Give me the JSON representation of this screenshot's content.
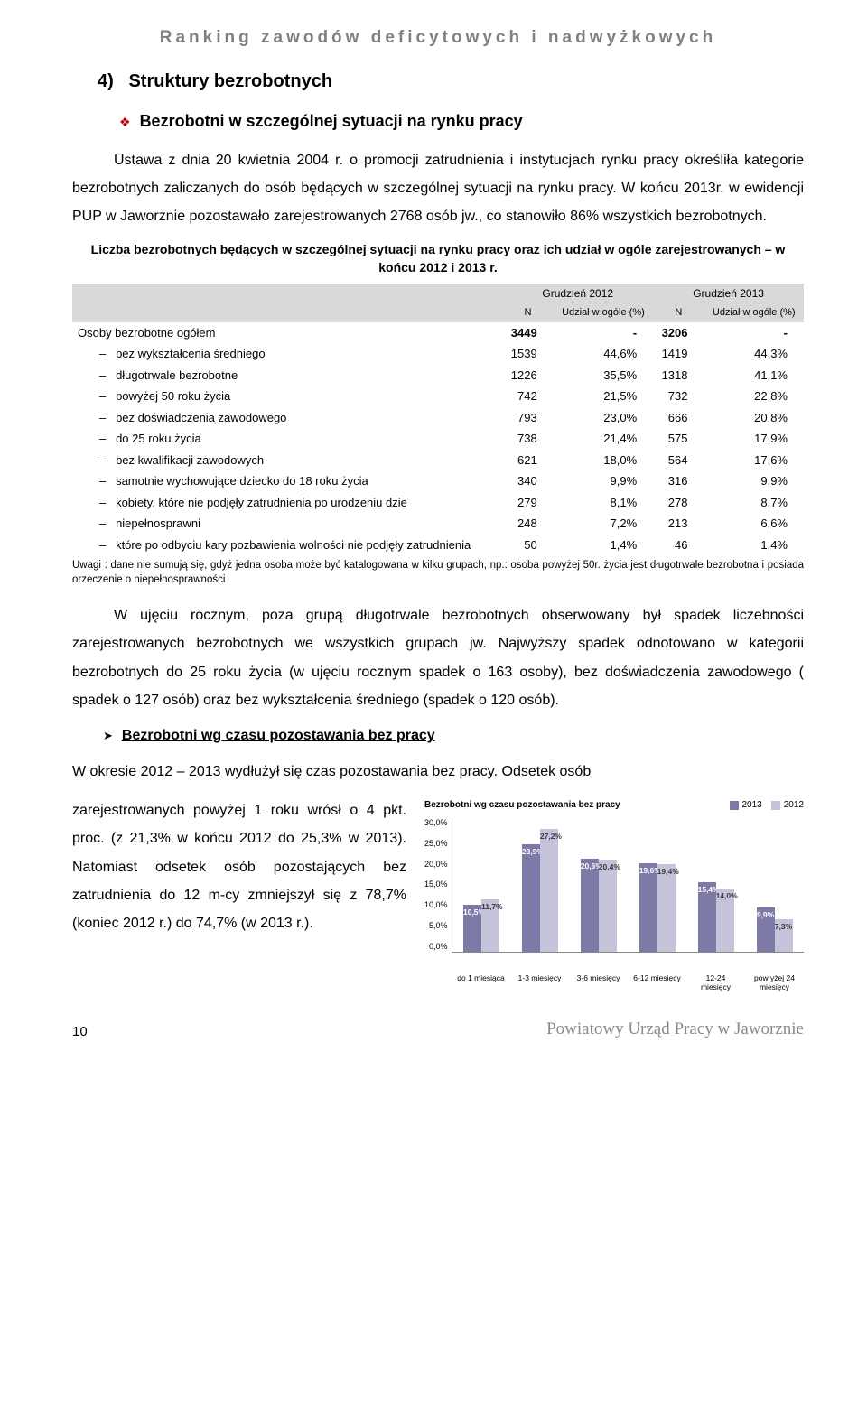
{
  "header": "Ranking zawodów deficytowych i nadwyżkowych",
  "section_number": "4)",
  "section_title": "Struktury bezrobotnych",
  "subhead1": "Bezrobotni w szczególnej sytuacji na rynku pracy",
  "para1": "Ustawa z dnia 20 kwietnia 2004 r. o promocji zatrudnienia i instytucjach rynku pracy określiła kategorie bezrobotnych zaliczanych do osób będących w szczególnej sytuacji na rynku pracy. W końcu 2013r. w ewidencji PUP w Jaworznie pozostawało zarejestrowanych 2768 osób jw., co stanowiło 86% wszystkich bezrobotnych.",
  "table_caption": "Liczba bezrobotnych będących w szczególnej sytuacji na rynku pracy oraz ich udział w ogóle zarejestrowanych – w końcu 2012 i 2013 r.",
  "table": {
    "head_group1": "Grudzień 2012",
    "head_group2": "Grudzień 2013",
    "head_n": "N",
    "head_pct": "Udział w ogóle (%)",
    "rows": [
      {
        "label": "Osoby bezrobotne ogółem",
        "n1": "3449",
        "p1": "-",
        "n2": "3206",
        "p2": "-",
        "bold": true,
        "dash": false
      },
      {
        "label": "bez wykształcenia średniego",
        "n1": "1539",
        "p1": "44,6%",
        "n2": "1419",
        "p2": "44,3%",
        "dash": true
      },
      {
        "label": "długotrwale bezrobotne",
        "n1": "1226",
        "p1": "35,5%",
        "n2": "1318",
        "p2": "41,1%",
        "dash": true
      },
      {
        "label": "powyżej 50 roku życia",
        "n1": "742",
        "p1": "21,5%",
        "n2": "732",
        "p2": "22,8%",
        "dash": true
      },
      {
        "label": "bez doświadczenia zawodowego",
        "n1": "793",
        "p1": "23,0%",
        "n2": "666",
        "p2": "20,8%",
        "dash": true
      },
      {
        "label": "do 25 roku życia",
        "n1": "738",
        "p1": "21,4%",
        "n2": "575",
        "p2": "17,9%",
        "dash": true
      },
      {
        "label": "bez kwalifikacji zawodowych",
        "n1": "621",
        "p1": "18,0%",
        "n2": "564",
        "p2": "17,6%",
        "dash": true
      },
      {
        "label": "samotnie wychowujące dziecko do 18 roku życia",
        "n1": "340",
        "p1": "9,9%",
        "n2": "316",
        "p2": "9,9%",
        "dash": true
      },
      {
        "label": "kobiety, które nie podjęły zatrudnienia po urodzeniu dzie",
        "n1": "279",
        "p1": "8,1%",
        "n2": "278",
        "p2": "8,7%",
        "dash": true
      },
      {
        "label": "niepełnosprawni",
        "n1": "248",
        "p1": "7,2%",
        "n2": "213",
        "p2": "6,6%",
        "dash": true
      },
      {
        "label": "które po odbyciu kary pozbawienia wolności nie podjęły zatrudnienia",
        "n1": "50",
        "p1": "1,4%",
        "n2": "46",
        "p2": "1,4%",
        "dash": true
      }
    ]
  },
  "footnote": "Uwagi : dane nie sumują się, gdyż jedna osoba może być katalogowana w kilku grupach, np.: osoba powyżej 50r. życia jest długotrwale bezrobotna i posiada orzeczenie o niepełnosprawności",
  "para2": "W ujęciu rocznym, poza grupą długotrwale bezrobotnych obserwowany był spadek liczebności zarejestrowanych bezrobotnych we wszystkich grupach jw. Najwyższy spadek odnotowano w kategorii bezrobotnych do 25 roku życia (w ujęciu rocznym spadek o 163 osoby), bez doświadczenia zawodowego ( spadek o 127 osób) oraz bez wykształcenia średniego (spadek o 120 osób).",
  "subhead2": "Bezrobotni wg czasu pozostawania bez pracy",
  "para3a": "W okresie 2012 – 2013 wydłużył się czas pozostawania bez pracy. Odsetek osób",
  "para3b": "zarejestrowanych powyżej 1 roku wrósł o 4 pkt. proc. (z 21,3% w końcu 2012 do 25,3% w 2013). Natomiast odsetek osób pozostających bez zatrudnienia do 12 m-cy zmniejszył się z 78,7% (koniec 2012 r.) do 74,7% (w 2013 r.).",
  "chart": {
    "title": "Bezrobotni wg czasu pozostawania bez pracy",
    "legend": [
      {
        "label": "2013",
        "color": "#7d7aa8"
      },
      {
        "label": "2012",
        "color": "#c5c3da"
      }
    ],
    "y_max": 30,
    "y_ticks": [
      "30,0%",
      "25,0%",
      "20,0%",
      "15,0%",
      "10,0%",
      "5,0%",
      "0,0%"
    ],
    "categories": [
      "do 1 miesiąca",
      "1-3 miesięcy",
      "3-6 miesięcy",
      "6-12 miesięcy",
      "12-24 miesięcy",
      "pow yżej 24 miesięcy"
    ],
    "series_2013": [
      10.5,
      23.9,
      20.6,
      19.6,
      15.4,
      9.9
    ],
    "series_2012": [
      11.7,
      27.2,
      20.4,
      19.4,
      14.0,
      7.3
    ],
    "labels_2013": [
      "10,5%",
      "23,9%",
      "20,6%",
      "19,6%",
      "15,4%",
      "9,9%"
    ],
    "labels_2012": [
      "11,7%",
      "27,2%",
      "20,4%",
      "19,4%",
      "14,0%",
      "7,3%"
    ],
    "bar_color_2013": "#7d7aa8",
    "bar_color_2012": "#c5c3da",
    "label_color_2013": "#ffffff",
    "label_color_2012": "#3a3a3a"
  },
  "footer": {
    "page": "10",
    "org": "Powiatowy Urząd Pracy w Jaworznie"
  }
}
